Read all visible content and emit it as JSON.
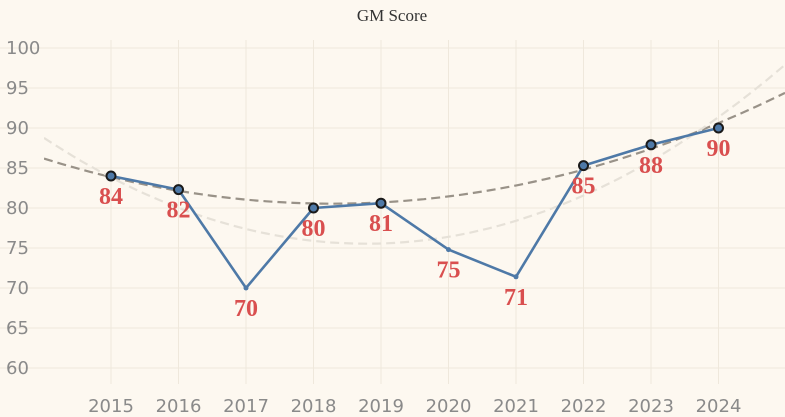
{
  "chart_data": {
    "type": "line",
    "title": "GM Score",
    "xlabel": "",
    "ylabel": "",
    "categories": [
      "2015",
      "2016",
      "2017",
      "2018",
      "2019",
      "2020",
      "2021",
      "2022",
      "2023",
      "2024"
    ],
    "series": [
      {
        "values": [
          84,
          82.3,
          70,
          80,
          80.6,
          74.8,
          71.4,
          85.3,
          87.9,
          90
        ],
        "data_labels": [
          "84",
          "82",
          "70",
          "80",
          "81",
          "75",
          "71",
          "85",
          "88",
          "90"
        ],
        "highlighted": [
          true,
          true,
          false,
          true,
          true,
          false,
          false,
          true,
          true,
          true
        ]
      }
    ],
    "trendlines": [
      {
        "style": "dashed",
        "color": "#999288",
        "kind": "quadratic",
        "fitted_to": "highlighted"
      },
      {
        "style": "dashed",
        "color": "#e6e1d8",
        "kind": "quadratic",
        "fitted_to": "all"
      }
    ],
    "ylim": [
      58,
      101
    ],
    "yticks": [
      60,
      65,
      70,
      75,
      80,
      85,
      90,
      95,
      100
    ],
    "grid": true,
    "colors": {
      "line": "#4e79a7",
      "marker": "#4e79a7",
      "marker_outline": "#1a1a1a",
      "label": "#d94f4f",
      "background": "#fdf8f0"
    }
  }
}
